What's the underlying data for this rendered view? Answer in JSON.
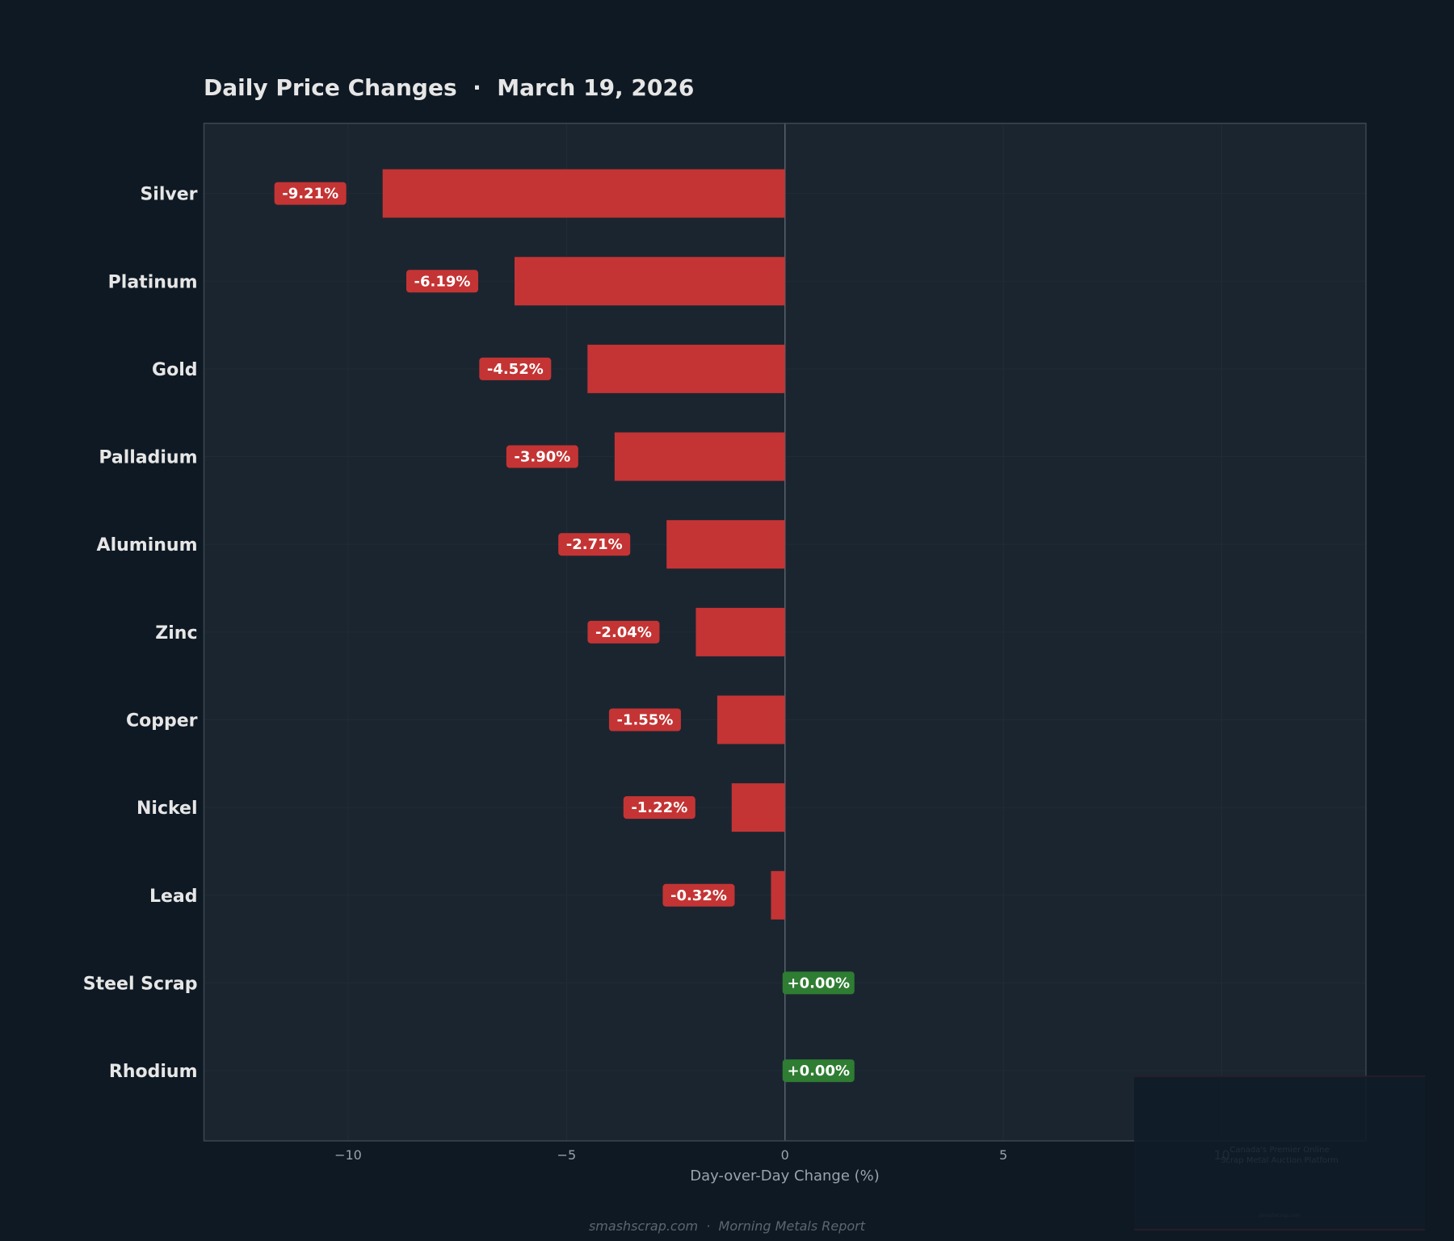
{
  "title": "Daily Price Changes  ·  March 19, 2026",
  "footer": "smashscrap.com  ·  Morning Metals Report",
  "watermark": {
    "tagline_1": "Canada's Premier Online",
    "tagline_2": "Scrap Metal Auction Platform",
    "url": "smashscrap.com"
  },
  "colors": {
    "negative": "#c43434",
    "positive": "#2e7d32",
    "background": "#0f1923",
    "plot_background": "#1b2530"
  },
  "chart_data": {
    "type": "bar",
    "orientation": "horizontal",
    "title": "Daily Price Changes  ·  March 19, 2026",
    "xlabel": "Day-over-Day Change (%)",
    "ylabel": "",
    "categories": [
      "Silver",
      "Platinum",
      "Gold",
      "Palladium",
      "Aluminum",
      "Zinc",
      "Copper",
      "Nickel",
      "Lead",
      "Steel Scrap",
      "Rhodium"
    ],
    "values": [
      -9.21,
      -6.19,
      -4.52,
      -3.9,
      -2.71,
      -2.04,
      -1.55,
      -1.22,
      -0.32,
      0.0,
      0.0
    ],
    "data_labels": [
      "-9.21%",
      "-6.19%",
      "-4.52%",
      "-3.90%",
      "-2.71%",
      "-2.04%",
      "-1.55%",
      "-1.22%",
      "-0.32%",
      "+0.00%",
      "+0.00%"
    ],
    "xlim": [
      -13.3,
      13.3
    ],
    "xticks": [
      -10,
      -5,
      0,
      5,
      10
    ],
    "xtick_labels": [
      "−10",
      "−5",
      "0",
      "5",
      "10"
    ],
    "grid": true
  }
}
